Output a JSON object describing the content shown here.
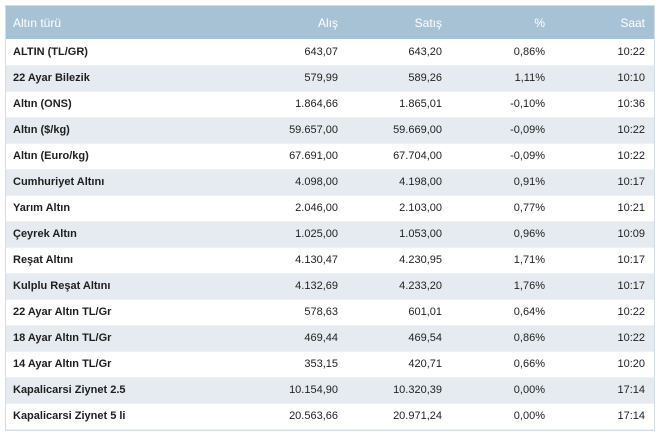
{
  "headers": {
    "name": "Altın türü",
    "alis": "Alış",
    "satis": "Satış",
    "pct": "%",
    "saat": "Saat"
  },
  "rows": [
    {
      "name": "ALTIN (TL/GR)",
      "alis": "643,07",
      "satis": "643,20",
      "pct": "0,86%",
      "saat": "10:22"
    },
    {
      "name": "22 Ayar Bilezik",
      "alis": "579,99",
      "satis": "589,26",
      "pct": "1,11%",
      "saat": "10:10"
    },
    {
      "name": "Altın (ONS)",
      "alis": "1.864,66",
      "satis": "1.865,01",
      "pct": "-0,10%",
      "saat": "10:36"
    },
    {
      "name": "Altın ($/kg)",
      "alis": "59.657,00",
      "satis": "59.669,00",
      "pct": "-0,09%",
      "saat": "10:22"
    },
    {
      "name": "Altın (Euro/kg)",
      "alis": "67.691,00",
      "satis": "67.704,00",
      "pct": "-0,09%",
      "saat": "10:22"
    },
    {
      "name": "Cumhuriyet Altını",
      "alis": "4.098,00",
      "satis": "4.198,00",
      "pct": "0,91%",
      "saat": "10:17"
    },
    {
      "name": "Yarım Altın",
      "alis": "2.046,00",
      "satis": "2.103,00",
      "pct": "0,77%",
      "saat": "10:21"
    },
    {
      "name": "Çeyrek Altın",
      "alis": "1.025,00",
      "satis": "1.053,00",
      "pct": "0,96%",
      "saat": "10:09"
    },
    {
      "name": "Reşat Altını",
      "alis": "4.130,47",
      "satis": "4.230,95",
      "pct": "1,71%",
      "saat": "10:17"
    },
    {
      "name": "Kulplu Reşat Altını",
      "alis": "4.132,69",
      "satis": "4.233,20",
      "pct": "1,76%",
      "saat": "10:17"
    },
    {
      "name": "22 Ayar Altın TL/Gr",
      "alis": "578,63",
      "satis": "601,01",
      "pct": "0,64%",
      "saat": "10:22"
    },
    {
      "name": "18 Ayar Altın TL/Gr",
      "alis": "469,44",
      "satis": "469,54",
      "pct": "0,86%",
      "saat": "10:22"
    },
    {
      "name": "14 Ayar Altın TL/Gr",
      "alis": "353,15",
      "satis": "420,71",
      "pct": "0,66%",
      "saat": "10:20"
    },
    {
      "name": "Kapalicarsi Ziynet 2.5",
      "alis": "10.154,90",
      "satis": "10.320,39",
      "pct": "0,00%",
      "saat": "17:14"
    },
    {
      "name": "Kapalicarsi Ziynet 5 li",
      "alis": "20.563,66",
      "satis": "20.971,24",
      "pct": "0,00%",
      "saat": "17:14"
    }
  ]
}
